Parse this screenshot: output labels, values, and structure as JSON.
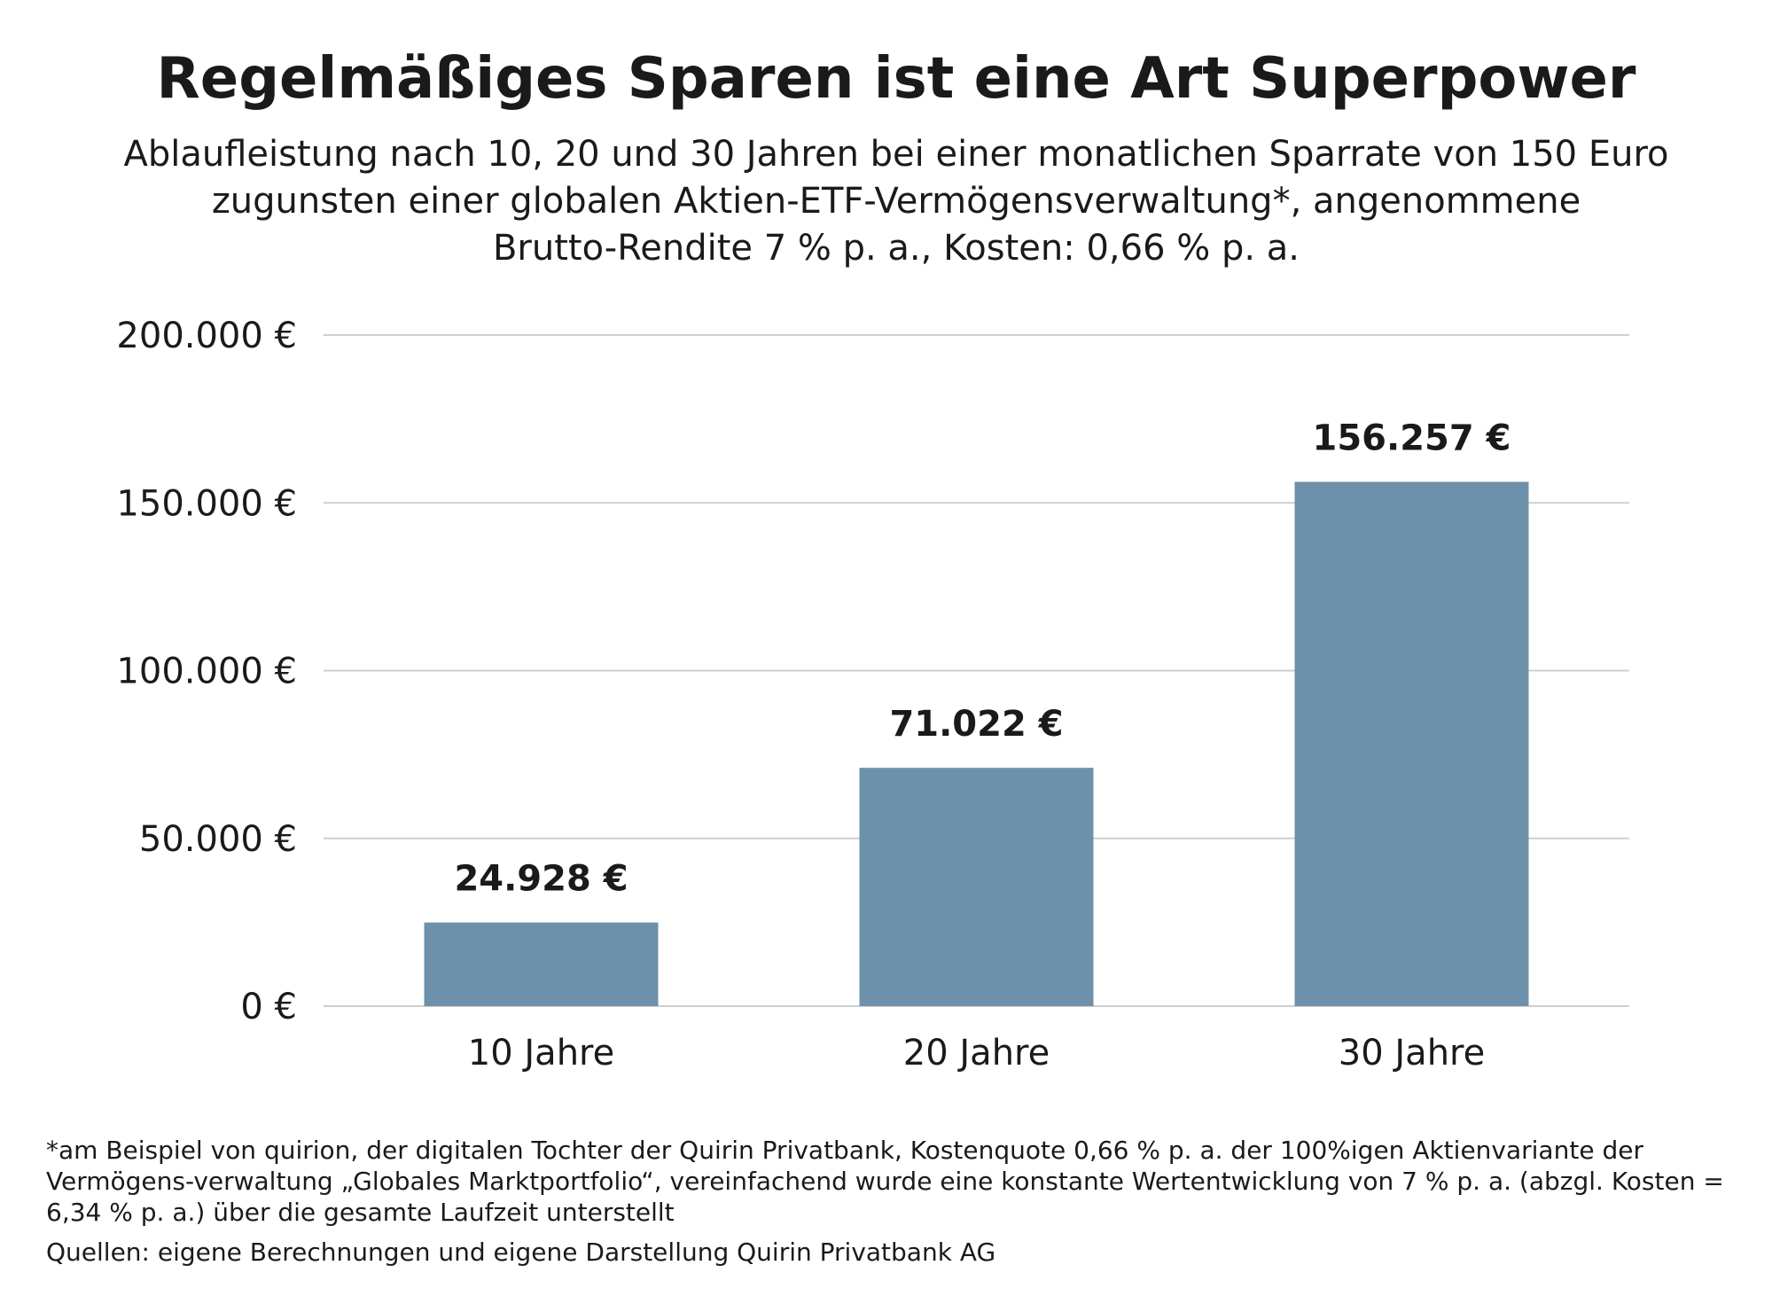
{
  "title": "Regelmäßiges Sparen ist eine Art Superpower",
  "subtitle_lines": [
    "Ablaufleistung nach 10, 20 und 30 Jahren bei einer monatlichen Sparrate von 150 Euro",
    "zugunsten einer globalen Aktien-ETF-Vermögensverwaltung*, angenommene",
    "Brutto-Rendite 7 % p. a., Kosten: 0,66 % p. a."
  ],
  "colors": {
    "bar": "#6D91AA",
    "grid": "#CFCFCF",
    "text": "#1A1A1A",
    "background": "#FFFFFF"
  },
  "chart_data": {
    "type": "bar",
    "categories": [
      "10 Jahre",
      "20 Jahre",
      "30 Jahre"
    ],
    "values": [
      24928,
      71022,
      156257
    ],
    "value_labels": [
      "24.928 €",
      "71.022 €",
      "156.257 €"
    ],
    "ylim": [
      0,
      200000
    ],
    "yticks": [
      0,
      50000,
      100000,
      150000,
      200000
    ],
    "ytick_labels": [
      "0 €",
      "50.000 €",
      "100.000 €",
      "150.000 €",
      "200.000 €"
    ],
    "grid": true,
    "legend": "none"
  },
  "footnote": "*am Beispiel von quirion, der digitalen Tochter der Quirin Privatbank, Kostenquote 0,66 % p. a. der 100%igen Aktienvariante der Vermögens-verwaltung „Globales Marktportfolio“, vereinfachend wurde eine konstante Wertentwicklung von 7 % p. a. (abzgl. Kosten = 6,34 % p. a.) über die gesamte Laufzeit unterstellt",
  "source": "Quellen: eigene Berechnungen und eigene Darstellung Quirin Privatbank AG"
}
